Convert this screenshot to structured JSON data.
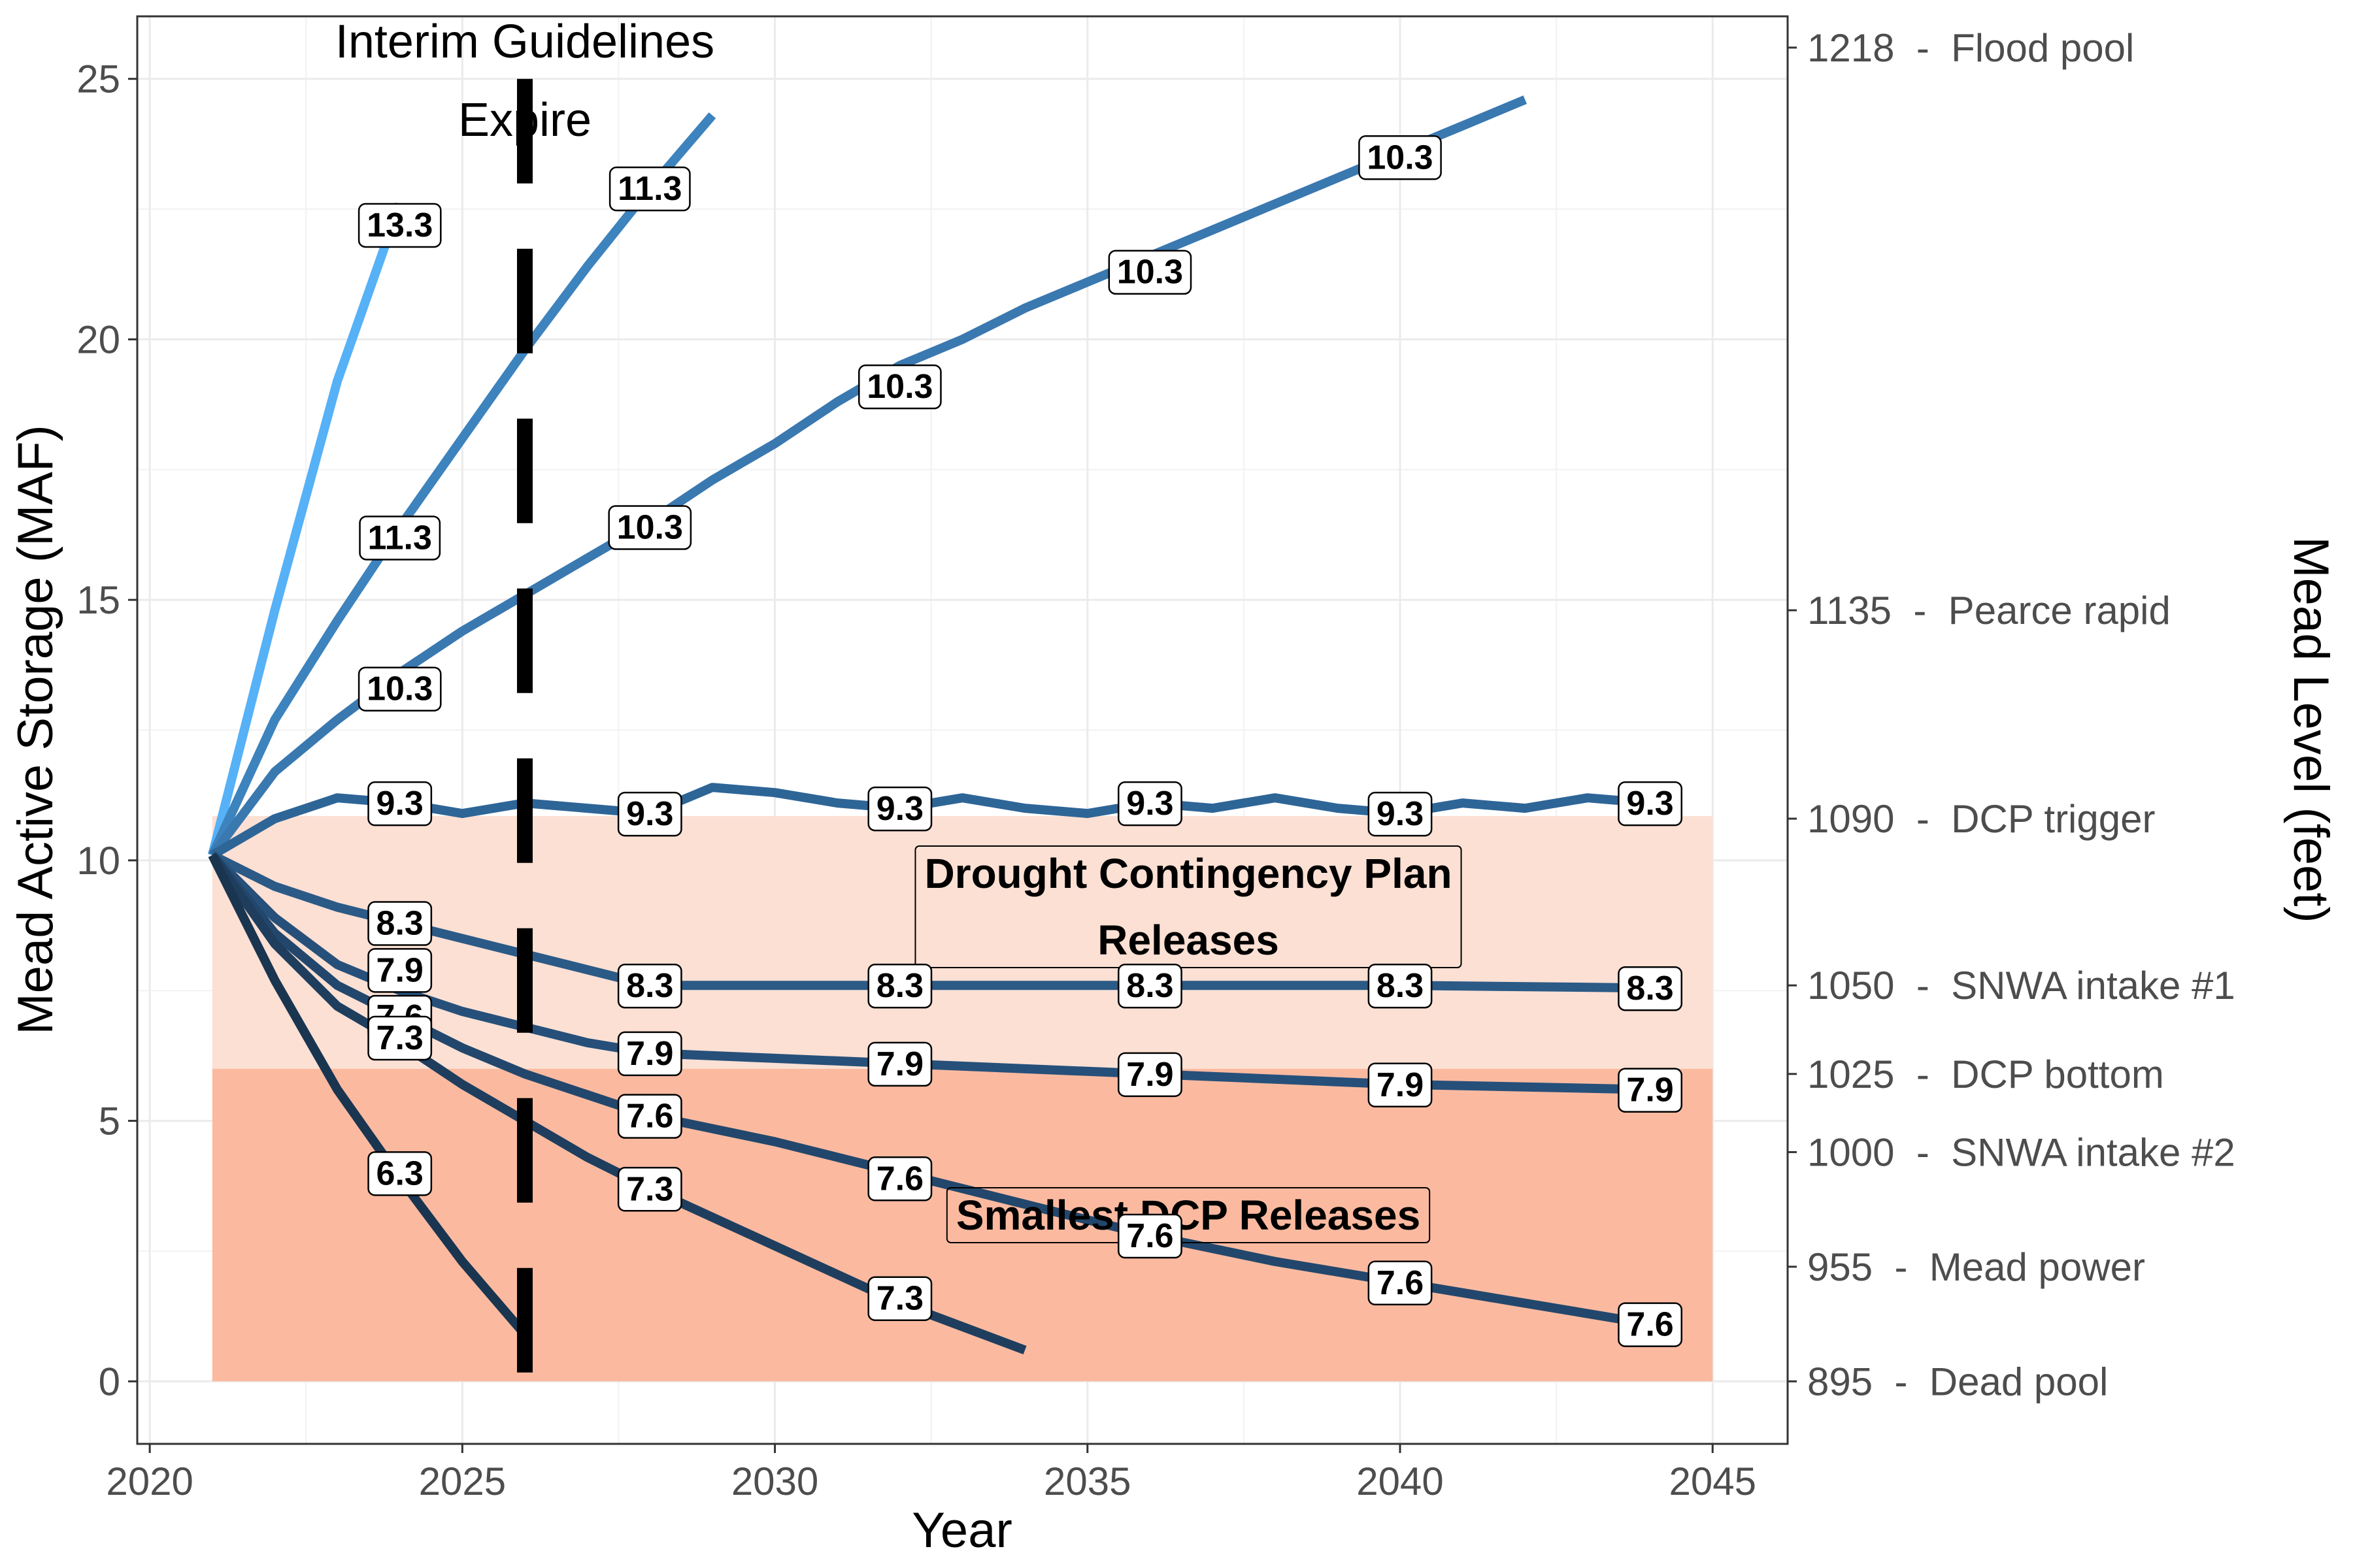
{
  "chart_data": {
    "type": "line",
    "xlabel": "Year",
    "ylabel": "Mead Active Storage (MAF)",
    "ylabel_right": "Mead Level (feet)",
    "xlim": [
      2019.8,
      2046.2
    ],
    "ylim": [
      -1.2,
      26.2
    ],
    "x_ticks": [
      2020,
      2025,
      2030,
      2035,
      2040,
      2045
    ],
    "y_ticks": [
      0,
      5,
      10,
      15,
      20,
      25
    ],
    "grid": true,
    "right_axis_ticks": [
      {
        "storage": 25.6,
        "label": "1218  -  Flood pool"
      },
      {
        "storage": 14.8,
        "label": "1135  -  Pearce rapid"
      },
      {
        "storage": 10.8,
        "label": "1090  -  DCP trigger"
      },
      {
        "storage": 7.6,
        "label": "1050  -  SNWA intake #1"
      },
      {
        "storage": 5.9,
        "label": "1025  -  DCP bottom"
      },
      {
        "storage": 4.4,
        "label": "1000  -  SNWA intake #2"
      },
      {
        "storage": 2.2,
        "label": "955  -  Mead power"
      },
      {
        "storage": 0.0,
        "label": "895  -  Dead pool"
      }
    ],
    "shaded_regions": [
      {
        "x": [
          2021,
          2045
        ],
        "y": [
          6.0,
          10.85
        ],
        "color": "#fce0d4",
        "label": "Drought Contingency Plan\nReleases"
      },
      {
        "x": [
          2021,
          2045
        ],
        "y": [
          0.0,
          6.0
        ],
        "color": "#fbbaa0",
        "label": "Smallest DCP Releases"
      }
    ],
    "vertical_marker": {
      "x": 2026,
      "label": "Interim Guidelines\nExpire",
      "style": "dashed",
      "color": "#000000"
    },
    "series": [
      {
        "inflow_label": "13.3",
        "color": "#56b1f7",
        "points": [
          [
            2021,
            10.1
          ],
          [
            2022,
            14.8
          ],
          [
            2023,
            19.2
          ],
          [
            2024,
            22.6
          ]
        ],
        "labels": [
          [
            2024,
            22.2,
            "13.3"
          ]
        ]
      },
      {
        "inflow_label": "11.3",
        "color": "#3d83bd",
        "points": [
          [
            2021,
            10.1
          ],
          [
            2022,
            12.7
          ],
          [
            2023,
            14.6
          ],
          [
            2024,
            16.4
          ],
          [
            2025,
            18.1
          ],
          [
            2026,
            19.8
          ],
          [
            2027,
            21.4
          ],
          [
            2028,
            22.9
          ],
          [
            2029,
            24.3
          ]
        ],
        "labels": [
          [
            2024,
            16.2,
            "11.3"
          ],
          [
            2028,
            22.9,
            "11.3"
          ]
        ]
      },
      {
        "inflow_label": "10.3",
        "color": "#3a78b0",
        "points": [
          [
            2021,
            10.1
          ],
          [
            2022,
            11.7
          ],
          [
            2023,
            12.7
          ],
          [
            2024,
            13.6
          ],
          [
            2025,
            14.4
          ],
          [
            2026,
            15.1
          ],
          [
            2027,
            15.8
          ],
          [
            2028,
            16.5
          ],
          [
            2029,
            17.3
          ],
          [
            2030,
            18.0
          ],
          [
            2031,
            18.8
          ],
          [
            2032,
            19.5
          ],
          [
            2033,
            20.0
          ],
          [
            2034,
            20.6
          ],
          [
            2035,
            21.1
          ],
          [
            2036,
            21.6
          ],
          [
            2037,
            22.1
          ],
          [
            2038,
            22.6
          ],
          [
            2039,
            23.1
          ],
          [
            2040,
            23.6
          ],
          [
            2041,
            24.1
          ],
          [
            2042,
            24.6
          ]
        ],
        "labels": [
          [
            2024,
            13.3,
            "10.3"
          ],
          [
            2028,
            16.4,
            "10.3"
          ],
          [
            2032,
            19.1,
            "10.3"
          ],
          [
            2036,
            21.3,
            "10.3"
          ],
          [
            2040,
            23.5,
            "10.3"
          ]
        ]
      },
      {
        "inflow_label": "9.3",
        "color": "#2e6597",
        "points": [
          [
            2021,
            10.1
          ],
          [
            2022,
            10.8
          ],
          [
            2023,
            11.2
          ],
          [
            2024,
            11.1
          ],
          [
            2025,
            10.9
          ],
          [
            2026,
            11.1
          ],
          [
            2027,
            11.0
          ],
          [
            2028,
            10.9
          ],
          [
            2029,
            11.4
          ],
          [
            2030,
            11.3
          ],
          [
            2031,
            11.1
          ],
          [
            2032,
            11.0
          ],
          [
            2033,
            11.2
          ],
          [
            2034,
            11.0
          ],
          [
            2035,
            10.9
          ],
          [
            2036,
            11.1
          ],
          [
            2037,
            11.0
          ],
          [
            2038,
            11.2
          ],
          [
            2039,
            11.0
          ],
          [
            2040,
            10.9
          ],
          [
            2041,
            11.1
          ],
          [
            2042,
            11.0
          ],
          [
            2043,
            11.2
          ],
          [
            2044,
            11.1
          ]
        ],
        "labels": [
          [
            2024,
            11.1,
            "9.3"
          ],
          [
            2028,
            10.9,
            "9.3"
          ],
          [
            2032,
            11.0,
            "9.3"
          ],
          [
            2036,
            11.1,
            "9.3"
          ],
          [
            2040,
            10.9,
            "9.3"
          ],
          [
            2044,
            11.1,
            "9.3"
          ]
        ]
      },
      {
        "inflow_label": "8.3",
        "color": "#2b5a86",
        "points": [
          [
            2021,
            10.1
          ],
          [
            2022,
            9.5
          ],
          [
            2023,
            9.1
          ],
          [
            2024,
            8.8
          ],
          [
            2025,
            8.5
          ],
          [
            2026,
            8.2
          ],
          [
            2027,
            7.9
          ],
          [
            2028,
            7.6
          ],
          [
            2029,
            7.6
          ],
          [
            2030,
            7.6
          ],
          [
            2031,
            7.6
          ],
          [
            2032,
            7.6
          ],
          [
            2036,
            7.6
          ],
          [
            2040,
            7.6
          ],
          [
            2044,
            7.55
          ]
        ],
        "labels": [
          [
            2024,
            8.8,
            "8.3"
          ],
          [
            2028,
            7.6,
            "8.3"
          ],
          [
            2032,
            7.6,
            "8.3"
          ],
          [
            2036,
            7.6,
            "8.3"
          ],
          [
            2040,
            7.6,
            "8.3"
          ],
          [
            2044,
            7.55,
            "8.3"
          ]
        ]
      },
      {
        "inflow_label": "7.9",
        "color": "#26507a",
        "points": [
          [
            2021,
            10.1
          ],
          [
            2022,
            8.9
          ],
          [
            2023,
            8.0
          ],
          [
            2024,
            7.5
          ],
          [
            2025,
            7.1
          ],
          [
            2026,
            6.8
          ],
          [
            2027,
            6.5
          ],
          [
            2028,
            6.3
          ],
          [
            2030,
            6.2
          ],
          [
            2032,
            6.1
          ],
          [
            2036,
            5.9
          ],
          [
            2040,
            5.7
          ],
          [
            2044,
            5.6
          ]
        ],
        "labels": [
          [
            2024,
            7.9,
            "7.9"
          ],
          [
            2028,
            6.3,
            "7.9"
          ],
          [
            2032,
            6.1,
            "7.9"
          ],
          [
            2036,
            5.9,
            "7.9"
          ],
          [
            2040,
            5.7,
            "7.9"
          ],
          [
            2044,
            5.6,
            "7.9"
          ]
        ]
      },
      {
        "inflow_label": "7.6",
        "color": "#23476c",
        "points": [
          [
            2021,
            10.1
          ],
          [
            2022,
            8.6
          ],
          [
            2023,
            7.6
          ],
          [
            2024,
            7.0
          ],
          [
            2025,
            6.4
          ],
          [
            2026,
            5.9
          ],
          [
            2027,
            5.5
          ],
          [
            2028,
            5.1
          ],
          [
            2030,
            4.6
          ],
          [
            2032,
            4.0
          ],
          [
            2034,
            3.4
          ],
          [
            2036,
            2.8
          ],
          [
            2038,
            2.3
          ],
          [
            2040,
            1.9
          ],
          [
            2042,
            1.5
          ],
          [
            2044,
            1.1
          ]
        ],
        "labels": [
          [
            2024,
            7.0,
            "7.6"
          ],
          [
            2028,
            5.1,
            "7.6"
          ],
          [
            2032,
            3.9,
            "7.6"
          ],
          [
            2036,
            2.8,
            "7.6"
          ],
          [
            2040,
            1.9,
            "7.6"
          ],
          [
            2044,
            1.1,
            "7.6"
          ]
        ]
      },
      {
        "inflow_label": "7.3",
        "color": "#1f3e5e",
        "points": [
          [
            2021,
            10.1
          ],
          [
            2022,
            8.4
          ],
          [
            2023,
            7.2
          ],
          [
            2024,
            6.5
          ],
          [
            2025,
            5.7
          ],
          [
            2026,
            5.0
          ],
          [
            2027,
            4.3
          ],
          [
            2028,
            3.7
          ],
          [
            2030,
            2.6
          ],
          [
            2032,
            1.5
          ],
          [
            2034,
            0.6
          ]
        ],
        "labels": [
          [
            2024,
            6.6,
            "7.3"
          ],
          [
            2028,
            3.7,
            "7.3"
          ],
          [
            2032,
            1.6,
            "7.3"
          ]
        ]
      },
      {
        "inflow_label": "6.3",
        "color": "#1a3550",
        "points": [
          [
            2021,
            10.1
          ],
          [
            2022,
            7.7
          ],
          [
            2023,
            5.6
          ],
          [
            2024,
            3.9
          ],
          [
            2025,
            2.3
          ],
          [
            2026,
            0.9
          ]
        ],
        "labels": [
          [
            2024,
            4.0,
            "6.3"
          ]
        ]
      }
    ]
  }
}
